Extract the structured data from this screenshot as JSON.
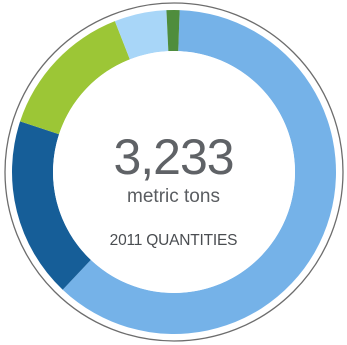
{
  "chart_data": {
    "type": "pie",
    "style": "donut",
    "total_label": "3,233",
    "unit_label": "metric tons",
    "caption": "2011 QUANTITIES",
    "segments": [
      {
        "value": 61.5,
        "color": "#75b2e8"
      },
      {
        "value": 18.0,
        "color": "#165e98"
      },
      {
        "value": 14.0,
        "color": "#9cc636"
      },
      {
        "value": 5.2,
        "color": "#a8d6f8"
      },
      {
        "value": 1.3,
        "color": "#4f8d3d"
      }
    ],
    "start_angle_deg": 90,
    "direction": "clockwise"
  }
}
